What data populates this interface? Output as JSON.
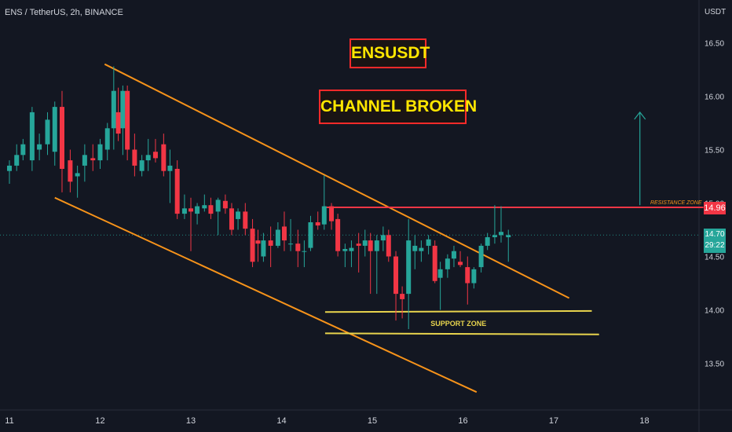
{
  "header": {
    "symbol": "ENS / TetherUS, 2h, BINANCE"
  },
  "annotations": {
    "badge_title": "ENSUSDT",
    "badge_subtitle": "CHANNEL BROKEN",
    "resistance_label": "RESISTANCE ZONE",
    "support_label": "SUPPORT ZONE"
  },
  "price_axis": {
    "currency": "USDT"
  },
  "price_tags": {
    "resistance_value": "14.96",
    "last_price": "14.70",
    "countdown": "29:22"
  },
  "colors": {
    "background": "#131722",
    "up": "#26a69a",
    "down": "#f23645",
    "channel": "#f7931a",
    "support": "#e8d44d",
    "resistance": "#f23645",
    "arrow": "#26a69a",
    "badge_border": "#ff2a2a",
    "badge_text": "#ffe600"
  },
  "chart_data": {
    "type": "candlestick",
    "x_ticks": [
      "11",
      "12",
      "13",
      "14",
      "15",
      "16",
      "17",
      "18"
    ],
    "y_ticks": [
      13.5,
      14.0,
      14.5,
      15.0,
      15.5,
      16.0,
      16.5
    ],
    "ylim": [
      13.22,
      16.74
    ],
    "x_range_days": [
      11.0,
      18.8
    ],
    "grid": false,
    "candles": [
      [
        11.0,
        15.3,
        15.4,
        15.18,
        15.35
      ],
      [
        11.08,
        15.35,
        15.55,
        15.3,
        15.45
      ],
      [
        11.15,
        15.45,
        15.6,
        15.4,
        15.55
      ],
      [
        11.25,
        15.4,
        15.9,
        15.3,
        15.85
      ],
      [
        11.33,
        15.5,
        15.65,
        15.4,
        15.55
      ],
      [
        11.42,
        15.55,
        15.85,
        15.45,
        15.78
      ],
      [
        11.5,
        15.48,
        15.95,
        15.35,
        15.9
      ],
      [
        11.58,
        15.9,
        16.05,
        15.1,
        15.32
      ],
      [
        11.67,
        15.4,
        15.5,
        15.1,
        15.2
      ],
      [
        11.75,
        15.25,
        15.35,
        15.05,
        15.28
      ],
      [
        11.83,
        15.35,
        15.55,
        15.2,
        15.45
      ],
      [
        11.92,
        15.42,
        15.55,
        15.3,
        15.4
      ],
      [
        12.0,
        15.4,
        15.6,
        15.32,
        15.55
      ],
      [
        12.08,
        15.5,
        15.75,
        15.4,
        15.7
      ],
      [
        12.15,
        15.7,
        16.28,
        15.5,
        16.05
      ],
      [
        12.2,
        15.85,
        16.08,
        15.58,
        15.65
      ],
      [
        12.25,
        15.7,
        16.1,
        15.45,
        16.05
      ],
      [
        12.3,
        16.05,
        16.1,
        15.4,
        15.5
      ],
      [
        12.38,
        15.5,
        15.65,
        15.25,
        15.35
      ],
      [
        12.46,
        15.3,
        15.45,
        15.25,
        15.4
      ],
      [
        12.53,
        15.4,
        15.6,
        15.3,
        15.45
      ],
      [
        12.61,
        15.48,
        15.6,
        15.38,
        15.42
      ],
      [
        12.7,
        15.55,
        15.65,
        15.25,
        15.3
      ],
      [
        12.77,
        15.3,
        15.5,
        15.0,
        15.35
      ],
      [
        12.85,
        15.32,
        15.4,
        14.85,
        14.9
      ],
      [
        12.93,
        14.9,
        15.08,
        14.85,
        14.95
      ],
      [
        13.0,
        14.95,
        15.05,
        14.55,
        14.92
      ],
      [
        13.07,
        14.9,
        15.0,
        14.8,
        14.97
      ],
      [
        13.15,
        14.95,
        15.08,
        14.92,
        14.98
      ],
      [
        13.22,
        14.98,
        15.05,
        14.85,
        14.9
      ],
      [
        13.3,
        14.92,
        15.05,
        14.7,
        15.03
      ],
      [
        13.38,
        15.02,
        15.08,
        14.9,
        14.95
      ],
      [
        13.45,
        14.95,
        15.0,
        14.7,
        14.75
      ],
      [
        13.52,
        14.85,
        14.95,
        14.75,
        14.92
      ],
      [
        13.6,
        14.92,
        15.0,
        14.7,
        14.76
      ],
      [
        13.68,
        14.76,
        14.85,
        14.4,
        14.45
      ],
      [
        13.74,
        14.65,
        14.75,
        14.45,
        14.62
      ],
      [
        13.8,
        14.5,
        14.72,
        14.45,
        14.65
      ],
      [
        13.88,
        14.65,
        14.78,
        14.4,
        14.6
      ],
      [
        13.96,
        14.6,
        14.82,
        14.58,
        14.75
      ],
      [
        14.03,
        14.78,
        14.92,
        14.55,
        14.65
      ],
      [
        14.1,
        14.62,
        14.85,
        14.55,
        14.62
      ],
      [
        14.18,
        14.62,
        14.75,
        14.4,
        14.55
      ],
      [
        14.25,
        14.55,
        14.65,
        14.4,
        14.55
      ],
      [
        14.32,
        14.58,
        14.88,
        14.55,
        14.82
      ],
      [
        14.4,
        14.82,
        14.92,
        14.75,
        14.79
      ],
      [
        14.47,
        14.8,
        15.26,
        14.75,
        14.97
      ],
      [
        14.55,
        14.97,
        15.0,
        14.75,
        14.83
      ],
      [
        14.62,
        14.85,
        14.9,
        14.5,
        14.55
      ],
      [
        14.7,
        14.55,
        14.62,
        14.4,
        14.57
      ],
      [
        14.77,
        14.55,
        14.65,
        14.4,
        14.58
      ],
      [
        14.85,
        14.62,
        14.72,
        14.35,
        14.6
      ],
      [
        14.92,
        14.6,
        14.75,
        14.5,
        14.65
      ],
      [
        14.98,
        14.65,
        14.72,
        14.15,
        14.55
      ],
      [
        15.05,
        14.55,
        14.7,
        14.15,
        14.65
      ],
      [
        15.12,
        14.65,
        14.78,
        14.55,
        14.7
      ],
      [
        15.18,
        14.7,
        14.75,
        14.45,
        14.5
      ],
      [
        15.26,
        14.5,
        14.55,
        13.9,
        14.15
      ],
      [
        15.33,
        14.15,
        14.22,
        13.92,
        14.1
      ],
      [
        15.4,
        14.15,
        14.85,
        13.82,
        14.65
      ],
      [
        15.47,
        14.55,
        14.7,
        14.38,
        14.6
      ],
      [
        15.54,
        14.55,
        14.65,
        14.45,
        14.58
      ],
      [
        15.62,
        14.6,
        14.7,
        14.52,
        14.66
      ],
      [
        15.69,
        14.6,
        14.65,
        14.25,
        14.27
      ],
      [
        15.75,
        14.3,
        14.45,
        14.0,
        14.38
      ],
      [
        15.83,
        14.38,
        14.52,
        14.3,
        14.48
      ],
      [
        15.9,
        14.48,
        14.6,
        14.4,
        14.55
      ],
      [
        15.97,
        14.45,
        14.55,
        14.4,
        14.42
      ],
      [
        16.05,
        14.4,
        14.5,
        14.05,
        14.25
      ],
      [
        16.12,
        14.25,
        14.4,
        14.2,
        14.38
      ],
      [
        16.2,
        14.4,
        14.62,
        14.35,
        14.6
      ],
      [
        16.27,
        14.6,
        14.72,
        14.56,
        14.68
      ],
      [
        16.35,
        14.68,
        14.98,
        14.62,
        14.7
      ],
      [
        16.42,
        14.7,
        14.97,
        14.63,
        14.73
      ],
      [
        16.5,
        14.68,
        14.75,
        14.45,
        14.7
      ]
    ],
    "channel_upper": [
      [
        12.05,
        16.3
      ],
      [
        17.17,
        14.11
      ]
    ],
    "channel_lower": [
      [
        11.5,
        15.05
      ],
      [
        16.15,
        13.23
      ]
    ],
    "resistance_level": 14.96,
    "resistance_x": [
      14.48,
      18.65
    ],
    "support_upper": [
      [
        14.48,
        13.98
      ],
      [
        17.42,
        13.99
      ]
    ],
    "support_lower": [
      [
        14.48,
        13.78
      ],
      [
        17.5,
        13.77
      ]
    ],
    "target_arrow": {
      "x": 17.95,
      "from": 14.98,
      "to": 15.85
    },
    "last_price": 14.7
  }
}
